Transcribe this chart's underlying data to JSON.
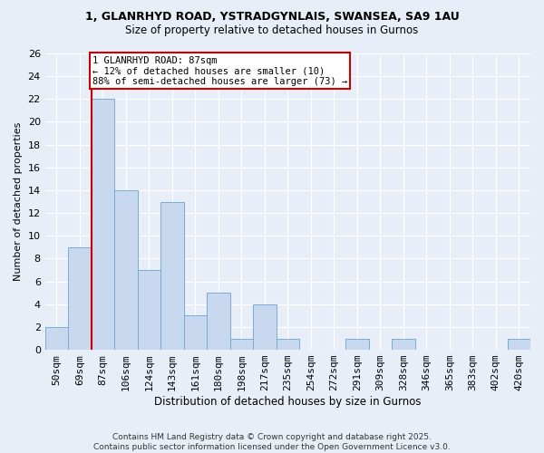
{
  "title1": "1, GLANRHYD ROAD, YSTRADGYNLAIS, SWANSEA, SA9 1AU",
  "title2": "Size of property relative to detached houses in Gurnos",
  "xlabel": "Distribution of detached houses by size in Gurnos",
  "ylabel": "Number of detached properties",
  "annotation_line1": "1 GLANRHYD ROAD: 87sqm",
  "annotation_line2": "← 12% of detached houses are smaller (10)",
  "annotation_line3": "88% of semi-detached houses are larger (73) →",
  "categories": [
    "50sqm",
    "69sqm",
    "87sqm",
    "106sqm",
    "124sqm",
    "143sqm",
    "161sqm",
    "180sqm",
    "198sqm",
    "217sqm",
    "235sqm",
    "254sqm",
    "272sqm",
    "291sqm",
    "309sqm",
    "328sqm",
    "346sqm",
    "365sqm",
    "383sqm",
    "402sqm",
    "420sqm"
  ],
  "values": [
    2,
    9,
    22,
    14,
    7,
    13,
    3,
    5,
    1,
    4,
    1,
    0,
    0,
    1,
    0,
    1,
    0,
    0,
    0,
    0,
    1
  ],
  "bar_color": "#c8d8ee",
  "bar_edge_color": "#7aadd4",
  "red_line_index": 2,
  "ylim": [
    0,
    26
  ],
  "yticks": [
    0,
    2,
    4,
    6,
    8,
    10,
    12,
    14,
    16,
    18,
    20,
    22,
    24,
    26
  ],
  "bg_color": "#e8eef8",
  "footer": "Contains HM Land Registry data © Crown copyright and database right 2025.\nContains public sector information licensed under the Open Government Licence v3.0.",
  "annotation_box_color": "#ffffff",
  "annotation_border_color": "#cc0000",
  "red_line_color": "#cc0000",
  "grid_color": "#ffffff",
  "title1_fontsize": 9,
  "title2_fontsize": 8.5
}
